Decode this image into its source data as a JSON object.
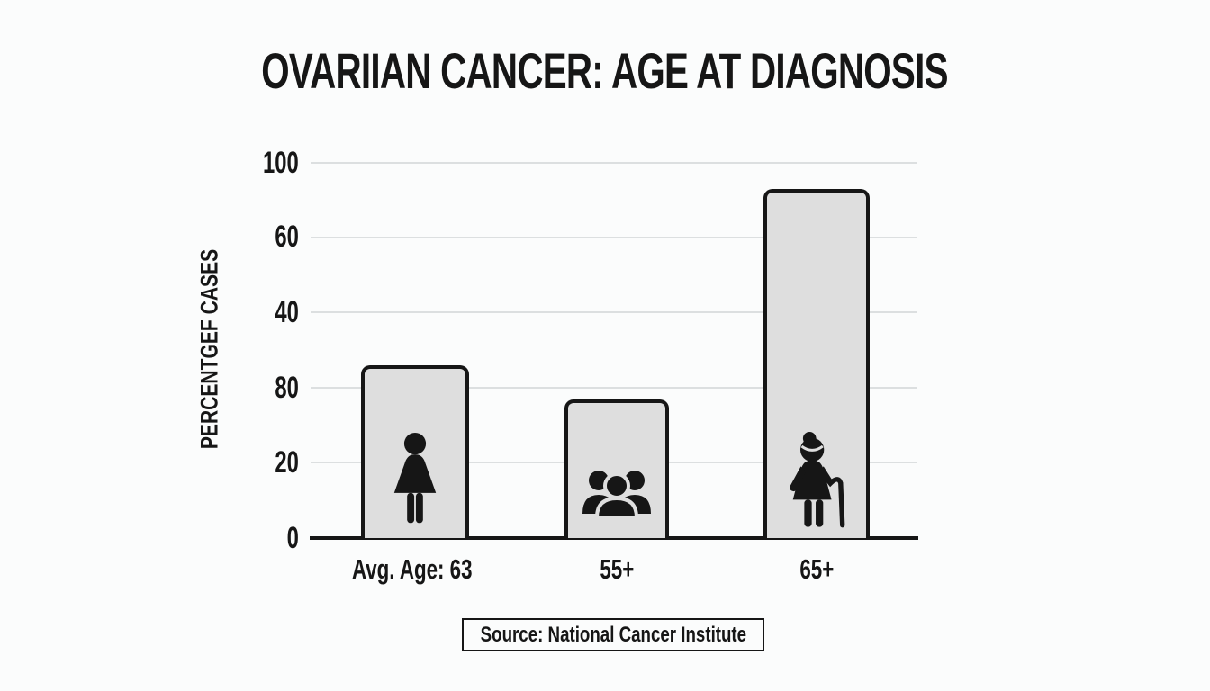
{
  "title": "OVARIIAN CANCER: AGE AT DIAGNOSIS",
  "y_axis": {
    "label": "PERCENTGEF CASES",
    "ticks": [
      "100",
      "60",
      "40",
      "80",
      "20",
      "0"
    ]
  },
  "chart_data": {
    "type": "bar",
    "title": "OVARIIAN CANCER: AGE AT DIAGNOSIS",
    "categories": [
      "Avg. Age: 63",
      "55+",
      "65+"
    ],
    "values": [
      46,
      37,
      93
    ],
    "ylabel": "PERCENTGEF CASES",
    "ylim": [
      0,
      100
    ],
    "y_tick_labels_as_shown": [
      "100",
      "60",
      "40",
      "80",
      "20",
      "0"
    ],
    "grid": true,
    "legend": false,
    "bar_icons": [
      "woman-icon",
      "people-group-icon",
      "elderly-woman-icon"
    ]
  },
  "source": {
    "text": "Source: National Cancer Institute"
  },
  "colors": {
    "background": "#fbfcfc",
    "bar_fill": "#dedede",
    "bar_border": "#161616",
    "gridline": "#dcdfe0",
    "text": "#161616"
  }
}
